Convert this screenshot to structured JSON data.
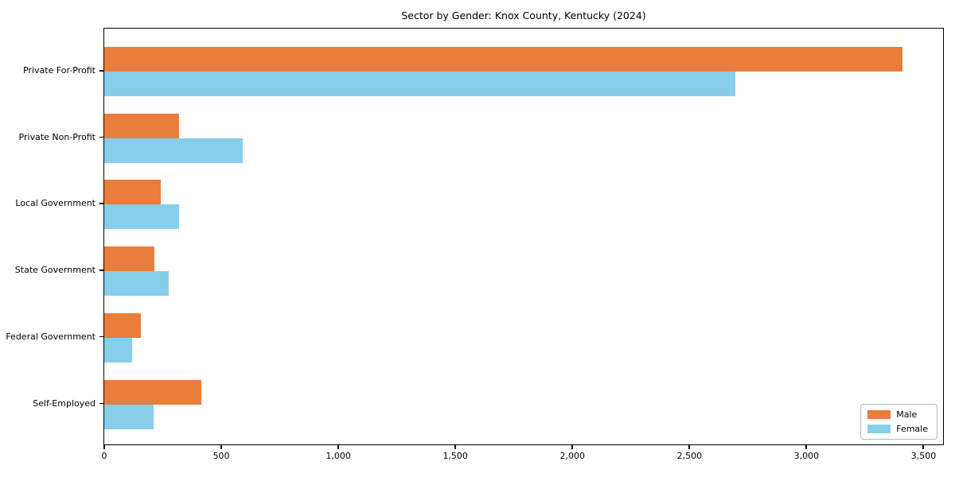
{
  "title": "Sector by Gender: Knox County, Kentucky (2024)",
  "chart_data": {
    "type": "bar",
    "orientation": "horizontal",
    "title": "Sector by Gender: Knox County, Kentucky (2024)",
    "categories": [
      "Private For-Profit",
      "Private Non-Profit",
      "Local Government",
      "State Government",
      "Federal Government",
      "Self-Employed"
    ],
    "series": [
      {
        "name": "Male",
        "color": "#e87d3c",
        "values": [
          3410,
          320,
          240,
          215,
          155,
          415
        ]
      },
      {
        "name": "Female",
        "color": "#87ceeb",
        "values": [
          2695,
          590,
          320,
          275,
          120,
          210
        ]
      }
    ],
    "xlabel": "",
    "ylabel": "",
    "xlim": [
      0,
      3580
    ],
    "xticks": [
      0,
      500,
      1000,
      1500,
      2000,
      2500,
      3000,
      3500
    ],
    "xtick_labels": [
      "0",
      "500",
      "1,000",
      "1,500",
      "2,000",
      "2,500",
      "3,000",
      "3,500"
    ],
    "legend_position": "lower right",
    "grid": false,
    "frame": true
  }
}
